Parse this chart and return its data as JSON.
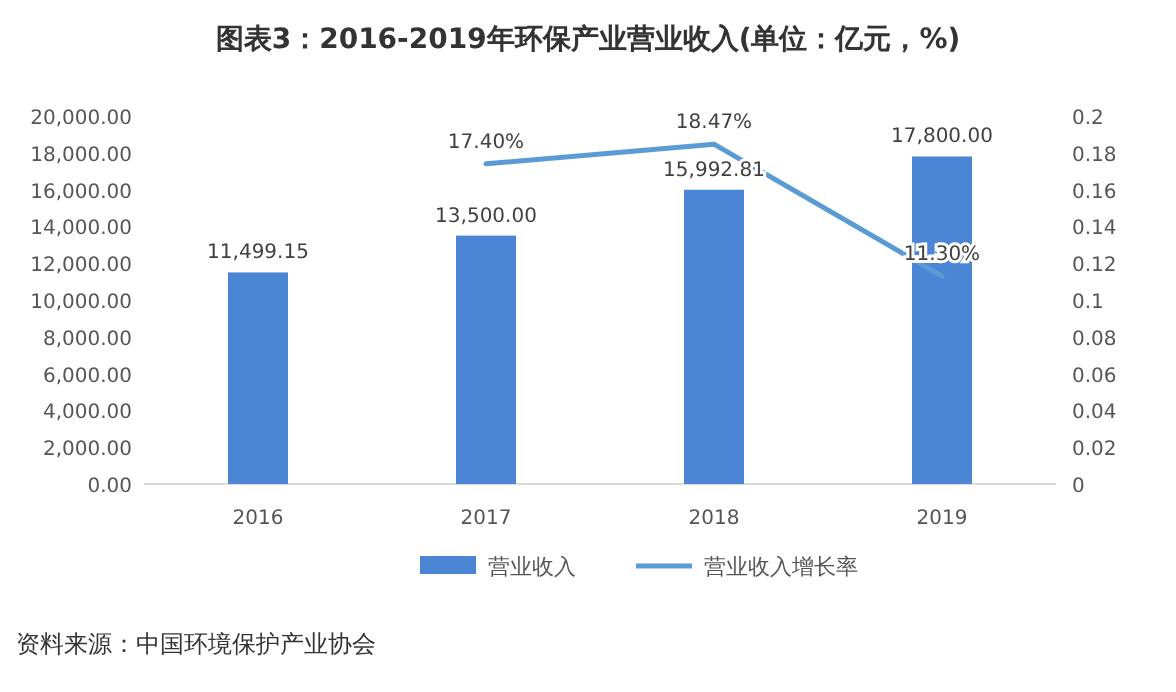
{
  "chart_data": {
    "type": "bar",
    "title": "图表3：2016-2019年环保产业营业收入(单位：亿元，%)",
    "categories": [
      "2016",
      "2017",
      "2018",
      "2019"
    ],
    "series": [
      {
        "name": "营业收入",
        "color": "#4a86d4",
        "values": [
          11499.15,
          13500,
          15992.81,
          17800
        ],
        "value_labels": [
          "11,499.15",
          "13,500.00",
          "15,992.81",
          "17,800.00"
        ]
      },
      {
        "name": "营业收入增长率",
        "type": "line",
        "axis": "y2",
        "color": "#5b9bd5",
        "values": [
          null,
          0.174,
          0.1847,
          0.113
        ],
        "value_labels": [
          null,
          "17.40%",
          "18.47%",
          "11.30%"
        ]
      }
    ],
    "ylim": [
      0,
      20000
    ],
    "yticks": [
      {
        "value": 0,
        "label": "0.00"
      },
      {
        "value": 2000,
        "label": "2,000.00"
      },
      {
        "value": 4000,
        "label": "4,000.00"
      },
      {
        "value": 6000,
        "label": "6,000.00"
      },
      {
        "value": 8000,
        "label": "8,000.00"
      },
      {
        "value": 10000,
        "label": "10,000.00"
      },
      {
        "value": 12000,
        "label": "12,000.00"
      },
      {
        "value": 14000,
        "label": "14,000.00"
      },
      {
        "value": 16000,
        "label": "16,000.00"
      },
      {
        "value": 18000,
        "label": "18,000.00"
      },
      {
        "value": 20000,
        "label": "20,000.00"
      }
    ],
    "y2lim": [
      0,
      0.2
    ],
    "y2ticks": [
      0,
      0.02,
      0.04,
      0.06,
      0.08,
      0.1,
      0.12,
      0.14,
      0.16,
      0.18,
      0.2
    ],
    "legend": "bottom",
    "grid": false,
    "marker": "none",
    "line_style": "solid",
    "annotations": [
      "资料来源：中国环境保护产业协会"
    ]
  }
}
